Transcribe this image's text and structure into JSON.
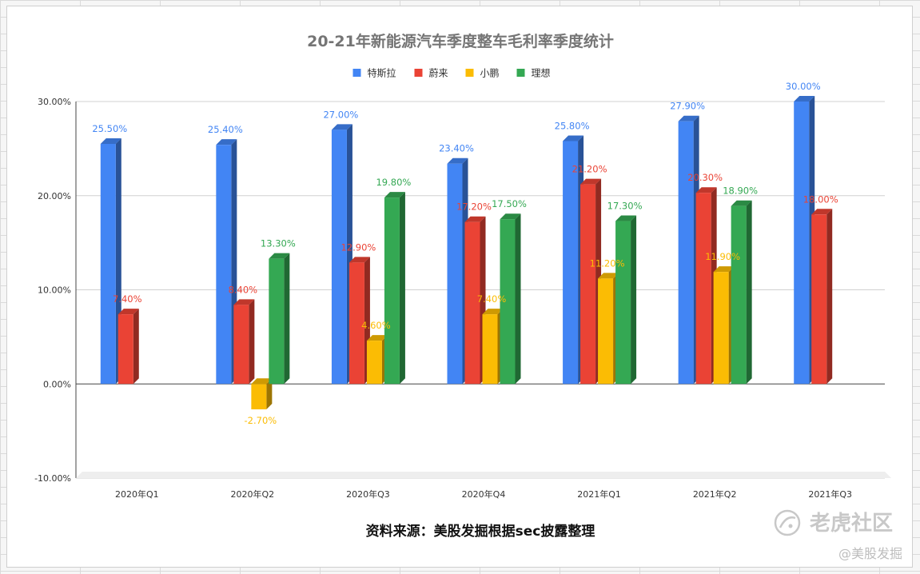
{
  "chart_data": {
    "type": "bar",
    "title": "20-21年新能源汽车季度整车毛利率季度统计",
    "categories": [
      "2020年Q1",
      "2020年Q2",
      "2020年Q3",
      "2020年Q4",
      "2021年Q1",
      "2021年Q2",
      "2021年Q3"
    ],
    "series": [
      {
        "name": "特斯拉",
        "color": "#4285f4",
        "values": [
          25.5,
          25.4,
          27.0,
          23.4,
          25.8,
          27.9,
          30.0
        ],
        "labels": [
          "25.50%",
          "25.40%",
          "27.00%",
          "23.40%",
          "25.80%",
          "27.90%",
          "30.00%"
        ]
      },
      {
        "name": "蔚来",
        "color": "#ea4335",
        "values": [
          7.4,
          8.4,
          12.9,
          17.2,
          21.2,
          20.3,
          18.0
        ],
        "labels": [
          "7.40%",
          "8.40%",
          "12.90%",
          "17.20%",
          "21.20%",
          "20.30%",
          "18.00%"
        ]
      },
      {
        "name": "小鹏",
        "color": "#fbbc04",
        "values": [
          null,
          -2.7,
          4.6,
          7.4,
          11.2,
          11.9,
          null
        ],
        "labels": [
          "",
          "-2.70%",
          "4.60%",
          "7.40%",
          "11.20%",
          "11.90%",
          ""
        ]
      },
      {
        "name": "理想",
        "color": "#34a853",
        "values": [
          null,
          13.3,
          19.8,
          17.5,
          17.3,
          18.9,
          null
        ],
        "labels": [
          "",
          "13.30%",
          "19.80%",
          "17.50%",
          "17.30%",
          "18.90%",
          ""
        ]
      }
    ],
    "yticks": [
      "30.00%",
      "20.00%",
      "10.00%",
      "0.00%",
      "-10.00%"
    ],
    "ylim": [
      -10,
      30
    ],
    "legend_position": "top-center",
    "grid": true,
    "bar_style": "3d"
  },
  "footer": {
    "source": "资料来源：美股发掘根据sec披露整理"
  },
  "watermark": {
    "logo_text": "老虎社区",
    "account": "@美股发掘"
  }
}
